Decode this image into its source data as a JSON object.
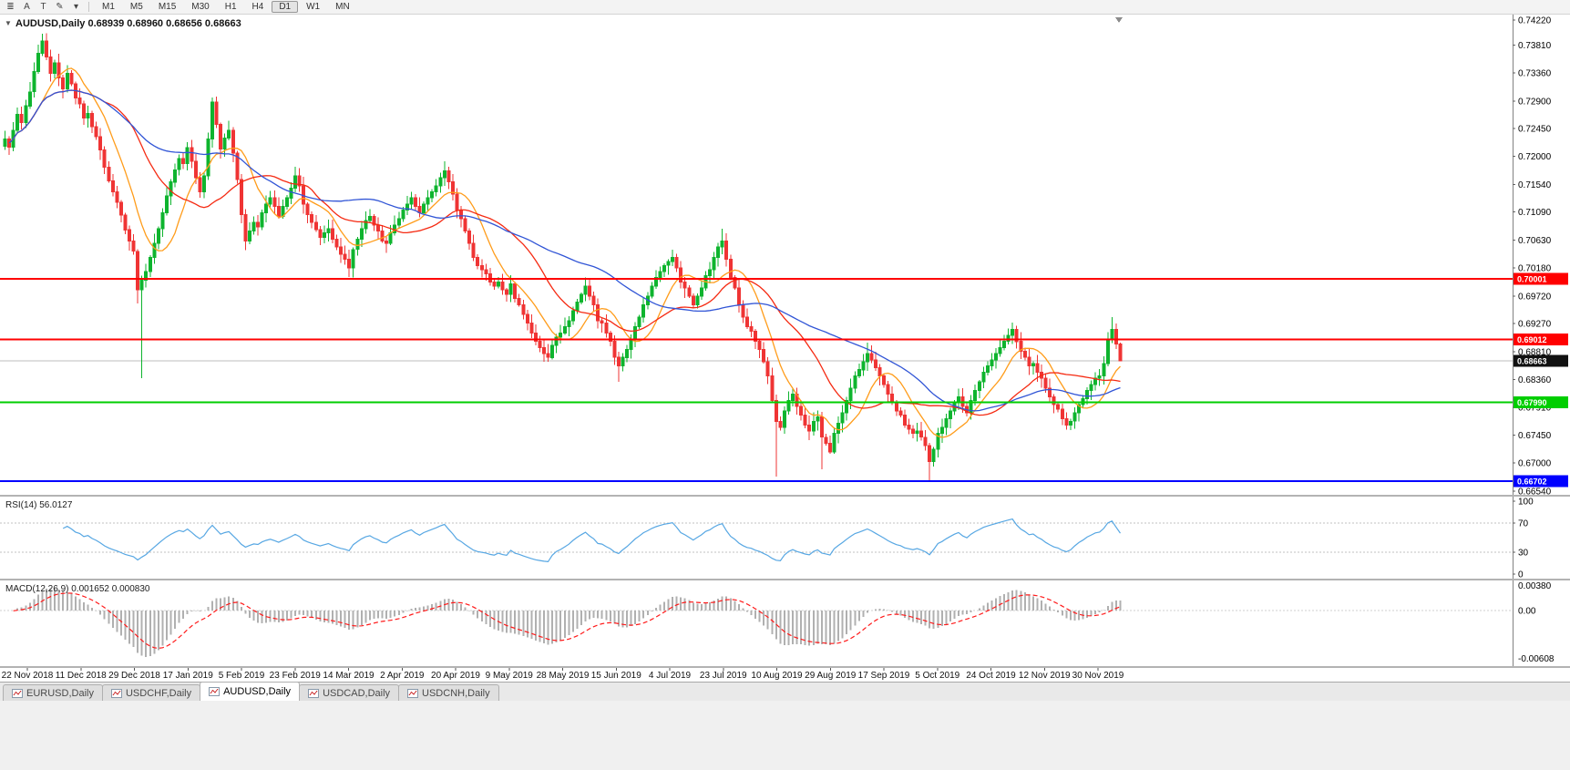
{
  "toolbar": {
    "icons": [
      {
        "name": "chart-properties-icon",
        "glyph": "≣"
      },
      {
        "name": "text-tool-icon",
        "glyph": "A"
      },
      {
        "name": "text-label-tool-icon",
        "glyph": "T"
      },
      {
        "name": "draw-tool-icon",
        "glyph": "✎"
      },
      {
        "name": "draw-dropdown-icon",
        "glyph": "▾"
      }
    ],
    "timeframes": [
      {
        "label": "M1",
        "active": false
      },
      {
        "label": "M5",
        "active": false
      },
      {
        "label": "M15",
        "active": false
      },
      {
        "label": "M30",
        "active": false
      },
      {
        "label": "H1",
        "active": false
      },
      {
        "label": "H4",
        "active": false
      },
      {
        "label": "D1",
        "active": true
      },
      {
        "label": "W1",
        "active": false
      },
      {
        "label": "MN",
        "active": false
      }
    ]
  },
  "chart": {
    "expander_glyph": "▼",
    "symbol": "AUDUSD,Daily",
    "ohlc_text": "0.68939 0.68960 0.68656 0.68663",
    "price_axis": [
      "0.74220",
      "0.73810",
      "0.73360",
      "0.72900",
      "0.72450",
      "0.72000",
      "0.71540",
      "0.71090",
      "0.70630",
      "0.70180",
      "0.69720",
      "0.69270",
      "0.68810",
      "0.68360",
      "0.67910",
      "0.67450",
      "0.67000",
      "0.66540"
    ],
    "levels": [
      {
        "label": "0.70001",
        "price": 0.70001,
        "color_key": "level_red"
      },
      {
        "label": "0.69012",
        "price": 0.69012,
        "color_key": "level_red"
      },
      {
        "label": "0.67990",
        "price": 0.6799,
        "color_key": "level_green"
      },
      {
        "label": "0.66702",
        "price": 0.66702,
        "color_key": "level_blue"
      }
    ],
    "current_price": {
      "label": "0.68663",
      "price": 0.68663
    },
    "dates": [
      "22 Nov 2018",
      "11 Dec 2018",
      "29 Dec 2018",
      "17 Jan 2019",
      "5 Feb 2019",
      "23 Feb 2019",
      "14 Mar 2019",
      "2 Apr 2019",
      "20 Apr 2019",
      "9 May 2019",
      "28 May 2019",
      "15 Jun 2019",
      "4 Jul 2019",
      "23 Jul 2019",
      "10 Aug 2019",
      "29 Aug 2019",
      "17 Sep 2019",
      "5 Oct 2019",
      "24 Oct 2019",
      "12 Nov 2019",
      "30 Nov 2019"
    ]
  },
  "rsi": {
    "label": "RSI(14)",
    "value": "56.0127",
    "axis": [
      "100",
      "70",
      "30",
      "0"
    ],
    "levels": [
      70,
      30
    ]
  },
  "macd": {
    "label": "MACD(12,26,9)",
    "values": "0.001652 0.000830",
    "axis_top": "0.00380",
    "axis_zero": "0.00",
    "axis_bottom": "-0.00608"
  },
  "tabs": [
    {
      "label": "EURUSD,Daily",
      "active": false
    },
    {
      "label": "USDCHF,Daily",
      "active": false
    },
    {
      "label": "AUDUSD,Daily",
      "active": true
    },
    {
      "label": "USDCAD,Daily",
      "active": false
    },
    {
      "label": "USDCNH,Daily",
      "active": false
    }
  ],
  "theme": {
    "up": "#0eb42e",
    "down": "#ef3434",
    "ma_fast": "#ff9c1a",
    "ma_mid": "#f52a12",
    "ma_slow": "#3155d6",
    "rsi": "#57a7e3",
    "rsi_level": "#c0c0c0",
    "macd_hist": "#b0b0b0",
    "macd_signal": "#ff1a1a",
    "level_red": "#ff0000",
    "level_green": "#00ce00",
    "level_blue": "#0000ff",
    "badge_black": "#111111"
  },
  "chart_data": {
    "type": "candlestick",
    "symbol": "AUDUSD",
    "timeframe": "Daily",
    "price_range": {
      "top": 0.7422,
      "bottom": 0.6654
    },
    "last_candle": {
      "open": 0.68939,
      "high": 0.6896,
      "low": 0.68656,
      "close": 0.68663
    },
    "indicators": {
      "ma_fast_period": 10,
      "ma_mid_period": 25,
      "ma_slow_period": 50,
      "rsi_period": 14,
      "macd": [
        12,
        26,
        9
      ]
    },
    "closes": [
      0.7228,
      0.7215,
      0.7242,
      0.7268,
      0.7255,
      0.7282,
      0.7305,
      0.7338,
      0.7368,
      0.7388,
      0.7362,
      0.7335,
      0.7352,
      0.7328,
      0.731,
      0.7335,
      0.7318,
      0.7295,
      0.7285,
      0.7262,
      0.727,
      0.7248,
      0.7232,
      0.721,
      0.7182,
      0.716,
      0.7142,
      0.7125,
      0.7104,
      0.708,
      0.7062,
      0.7045,
      0.6982,
      0.6998,
      0.7012,
      0.7035,
      0.7058,
      0.7082,
      0.7108,
      0.7135,
      0.7158,
      0.7178,
      0.7196,
      0.7188,
      0.7214,
      0.7192,
      0.7165,
      0.7142,
      0.7168,
      0.7228,
      0.7288,
      0.7252,
      0.7212,
      0.723,
      0.7242,
      0.7205,
      0.7162,
      0.7105,
      0.7062,
      0.7078,
      0.7092,
      0.7085,
      0.7108,
      0.7122,
      0.7132,
      0.7118,
      0.7102,
      0.7118,
      0.7132,
      0.7148,
      0.7168,
      0.7152,
      0.7122,
      0.7105,
      0.7092,
      0.708,
      0.7068,
      0.7075,
      0.7082,
      0.7065,
      0.7052,
      0.704,
      0.7032,
      0.7018,
      0.7048,
      0.7065,
      0.7082,
      0.7095,
      0.7102,
      0.7088,
      0.7078,
      0.7062,
      0.7058,
      0.7075,
      0.7088,
      0.7098,
      0.7112,
      0.7122,
      0.7132,
      0.7118,
      0.7108,
      0.7122,
      0.7132,
      0.7142,
      0.7152,
      0.7165,
      0.7176,
      0.7158,
      0.7138,
      0.7112,
      0.7098,
      0.7078,
      0.7058,
      0.7035,
      0.7022,
      0.7015,
      0.7008,
      0.6995,
      0.6988,
      0.6995,
      0.6982,
      0.6975,
      0.6992,
      0.6968,
      0.6958,
      0.6942,
      0.6928,
      0.6912,
      0.6898,
      0.6888,
      0.6878,
      0.6872,
      0.6892,
      0.6905,
      0.6912,
      0.6922,
      0.6932,
      0.6948,
      0.6962,
      0.6975,
      0.6988,
      0.6972,
      0.6958,
      0.6932,
      0.6928,
      0.6912,
      0.6898,
      0.6872,
      0.6858,
      0.6872,
      0.6885,
      0.6902,
      0.6922,
      0.6938,
      0.6958,
      0.6972,
      0.6988,
      0.7002,
      0.7012,
      0.7022,
      0.7028,
      0.7035,
      0.7018,
      0.6995,
      0.6985,
      0.6972,
      0.6958,
      0.6972,
      0.6985,
      0.7005,
      0.7015,
      0.7035,
      0.7052,
      0.7062,
      0.7032,
      0.7002,
      0.6985,
      0.6958,
      0.6938,
      0.6922,
      0.6915,
      0.6898,
      0.6885,
      0.6865,
      0.6842,
      0.6802,
      0.6768,
      0.6758,
      0.6785,
      0.6802,
      0.6812,
      0.6792,
      0.6778,
      0.6762,
      0.6752,
      0.6768,
      0.6775,
      0.6742,
      0.6732,
      0.6718,
      0.6748,
      0.6765,
      0.6782,
      0.6802,
      0.6822,
      0.6842,
      0.6852,
      0.6865,
      0.6878,
      0.6868,
      0.6855,
      0.6842,
      0.6828,
      0.6812,
      0.6798,
      0.6785,
      0.6778,
      0.6762,
      0.6755,
      0.6748,
      0.6752,
      0.6742,
      0.6728,
      0.6702,
      0.6722,
      0.6748,
      0.6758,
      0.6772,
      0.6785,
      0.6798,
      0.6808,
      0.6792,
      0.6782,
      0.6802,
      0.6818,
      0.6832,
      0.6848,
      0.6858,
      0.6868,
      0.6878,
      0.6888,
      0.6898,
      0.6908,
      0.6918,
      0.6898,
      0.6882,
      0.6872,
      0.6858,
      0.6862,
      0.6848,
      0.6838,
      0.6822,
      0.6808,
      0.6795,
      0.6788,
      0.6772,
      0.6762,
      0.6768,
      0.6782,
      0.6795,
      0.6805,
      0.6818,
      0.6828,
      0.6838,
      0.6842,
      0.6862,
      0.6902,
      0.6918,
      0.6894,
      0.68663
    ],
    "wick_overrides": {
      "9": {
        "high": 0.74
      },
      "32": {
        "low": 0.696
      },
      "33": {
        "low": 0.6838
      },
      "50": {
        "high": 0.7296
      },
      "83": {
        "low": 0.7003
      },
      "106": {
        "high": 0.7192
      },
      "130": {
        "low": 0.6865
      },
      "140": {
        "high": 0.7002
      },
      "148": {
        "low": 0.6832
      },
      "161": {
        "high": 0.7048
      },
      "173": {
        "high": 0.7082
      },
      "186": {
        "low": 0.6678
      },
      "197": {
        "low": 0.669
      },
      "208": {
        "high": 0.6896
      },
      "223": {
        "low": 0.667
      },
      "243": {
        "high": 0.6929
      },
      "256": {
        "low": 0.6754
      },
      "267": {
        "high": 0.6938
      }
    }
  }
}
